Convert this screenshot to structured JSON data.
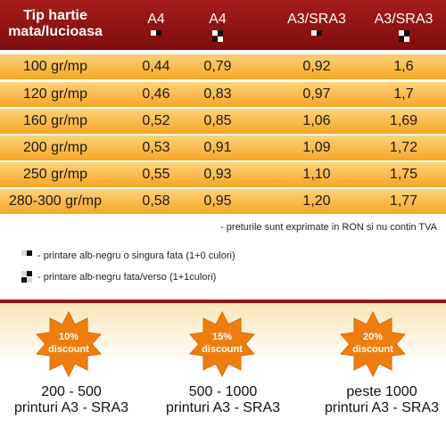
{
  "header": {
    "title_line1": "Tip hartie",
    "title_line2": "mata/lucioasa",
    "columns": [
      "A4",
      "A4",
      "A3/SRA3",
      "A3/SRA3"
    ]
  },
  "rows": [
    {
      "label": "100 gr/mp",
      "values": [
        "0,44",
        "0,79",
        "0,92",
        "1,6"
      ]
    },
    {
      "label": "120 gr/mp",
      "values": [
        "0,46",
        "0,83",
        "0,97",
        "1,7"
      ]
    },
    {
      "label": "160 gr/mp",
      "values": [
        "0,52",
        "0,85",
        "1,06",
        "1,69"
      ]
    },
    {
      "label": "200 gr/mp",
      "values": [
        "0,53",
        "0,91",
        "1,09",
        "1,72"
      ]
    },
    {
      "label": "250 gr/mp",
      "values": [
        "0,55",
        "0,93",
        "1,10",
        "1,75"
      ]
    },
    {
      "label": "280-300 gr/mp",
      "values": [
        "0,58",
        "0,95",
        "1,20",
        "1,77"
      ]
    }
  ],
  "note": "- preturile sunt exprimate in RON si nu contin TVA",
  "legend": {
    "single": "- printare alb-negru o singura fata (1+0 culori)",
    "double": "- printare alb-negru fata/verso (1+1culori)"
  },
  "discounts": [
    {
      "percent": "10%",
      "label": "discount",
      "range": "200 - 500",
      "unit": "printuri A3 - SRA3"
    },
    {
      "percent": "15%",
      "label": "discount",
      "range": "500 - 1000",
      "unit": "printuri A3 - SRA3"
    },
    {
      "percent": "20%",
      "label": "discount",
      "range": "peste 1000",
      "unit": "printuri A3 - SRA3"
    }
  ],
  "colors": {
    "header": "#8e1414",
    "row": "#f9bb4a",
    "badge": "#ef7d0e",
    "separator": "#9b1212"
  }
}
